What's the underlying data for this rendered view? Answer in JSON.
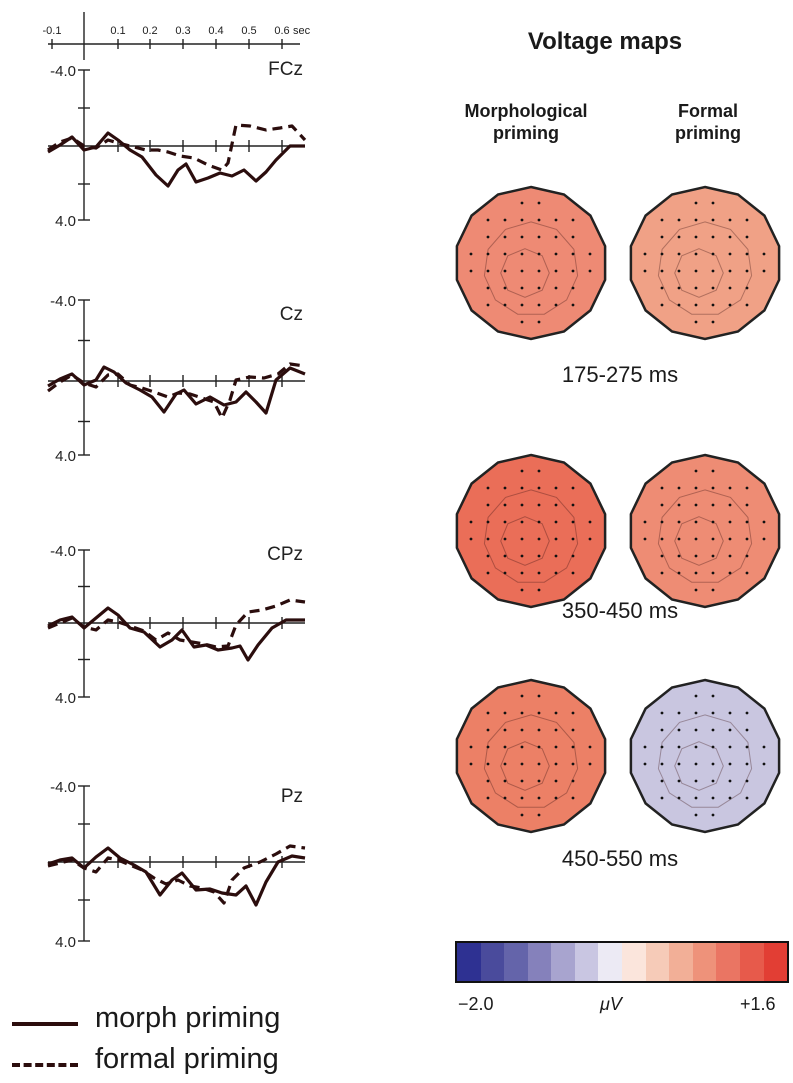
{
  "erp": {
    "x_ticks": [
      "-0.1",
      "0.1",
      "0.2",
      "0.3",
      "0.4",
      "0.5",
      "0.6"
    ],
    "x_unit": "sec",
    "y_top": "-4.0",
    "y_bottom": "4.0",
    "channels": [
      "FCz",
      "Cz",
      "CPz",
      "Pz"
    ]
  },
  "maps": {
    "title": "Voltage maps",
    "col_morph": "Morphological\npriming",
    "col_formal": "Formal\npriming",
    "windows": [
      "175-275 ms",
      "350-450 ms",
      "450-550 ms"
    ],
    "map_colors": {
      "morph": [
        "#ee8a74",
        "#ea6e58",
        "#ec8066"
      ],
      "formal": [
        "#f0a186",
        "#ee8c74",
        "#c9c6e0"
      ]
    }
  },
  "colorbar": {
    "min_label": "−2.0",
    "unit_label": "μV",
    "max_label": "+1.6",
    "colors": [
      "#2e3192",
      "#4a4b9c",
      "#6464aa",
      "#8581bb",
      "#a8a4cf",
      "#c9c6e2",
      "#eceaf4",
      "#fbe5dc",
      "#f6cbb8",
      "#f2af97",
      "#ee927a",
      "#ea7563",
      "#e75a4b",
      "#e23e34"
    ]
  },
  "legend": {
    "morph": "morph priming",
    "formal": "formal priming"
  }
}
